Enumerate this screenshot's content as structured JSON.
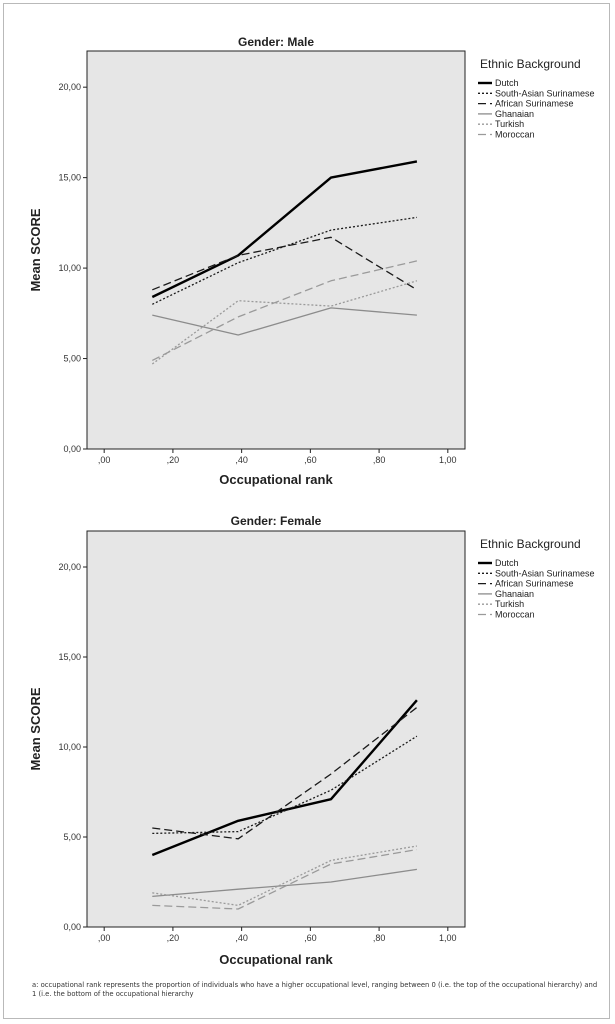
{
  "chart_data": [
    {
      "type": "line",
      "title": "Gender: Male",
      "xlabel": "Occupational rank",
      "ylabel": "Mean SCORE",
      "xlim": [
        -0.05,
        1.05
      ],
      "ylim": [
        0,
        22
      ],
      "x_ticks": [
        ",00",
        ",20",
        ",40",
        ",60",
        ",80",
        "1,00"
      ],
      "x_tick_values": [
        0,
        0.2,
        0.4,
        0.6,
        0.8,
        1.0
      ],
      "y_ticks": [
        "0,00",
        "5,00",
        "10,00",
        "15,00",
        "20,00"
      ],
      "y_tick_values": [
        0,
        5,
        10,
        15,
        20
      ],
      "grid": false,
      "legend_title": "Ethnic Background",
      "legend_position": "right",
      "x": [
        0.14,
        0.39,
        0.66,
        0.91
      ],
      "series": [
        {
          "name": "Dutch",
          "values": [
            8.4,
            10.7,
            15.0,
            15.9
          ],
          "color": "#000000",
          "dash": "solid",
          "width": 2.4
        },
        {
          "name": "South-Asian Surinamese",
          "values": [
            8.0,
            10.3,
            12.1,
            12.8
          ],
          "color": "#1a1a1a",
          "dash": "dotted",
          "width": 1.3
        },
        {
          "name": "African Surinamese",
          "values": [
            8.8,
            10.7,
            11.7,
            8.8
          ],
          "color": "#1a1a1a",
          "dash": "longdash",
          "width": 1.3
        },
        {
          "name": "Ghanaian",
          "values": [
            7.4,
            6.3,
            7.8,
            7.4
          ],
          "color": "#8c8c8c",
          "dash": "solid",
          "width": 1.3
        },
        {
          "name": "Turkish",
          "values": [
            4.7,
            8.2,
            7.9,
            9.3
          ],
          "color": "#9a9a9a",
          "dash": "dotted",
          "width": 1.3
        },
        {
          "name": "Moroccan",
          "values": [
            4.9,
            7.3,
            9.3,
            10.4
          ],
          "color": "#9a9a9a",
          "dash": "longdash",
          "width": 1.3
        }
      ]
    },
    {
      "type": "line",
      "title": "Gender: Female",
      "xlabel": "Occupational rank",
      "ylabel": "Mean SCORE",
      "xlim": [
        -0.05,
        1.05
      ],
      "ylim": [
        0,
        22
      ],
      "x_ticks": [
        ",00",
        ",20",
        ",40",
        ",60",
        ",80",
        "1,00"
      ],
      "x_tick_values": [
        0,
        0.2,
        0.4,
        0.6,
        0.8,
        1.0
      ],
      "y_ticks": [
        "0,00",
        "5,00",
        "10,00",
        "15,00",
        "20,00"
      ],
      "y_tick_values": [
        0,
        5,
        10,
        15,
        20
      ],
      "grid": false,
      "legend_title": "Ethnic Background",
      "legend_position": "right",
      "x": [
        0.14,
        0.39,
        0.66,
        0.91
      ],
      "series": [
        {
          "name": "Dutch",
          "values": [
            4.0,
            5.9,
            7.1,
            12.6
          ],
          "color": "#000000",
          "dash": "solid",
          "width": 2.4
        },
        {
          "name": "South-Asian Surinamese",
          "values": [
            5.2,
            5.3,
            7.6,
            10.6
          ],
          "color": "#1a1a1a",
          "dash": "dotted",
          "width": 1.3
        },
        {
          "name": "African Surinamese",
          "values": [
            5.5,
            4.9,
            8.5,
            12.2
          ],
          "color": "#1a1a1a",
          "dash": "longdash",
          "width": 1.3
        },
        {
          "name": "Ghanaian",
          "values": [
            1.7,
            2.1,
            2.5,
            3.2
          ],
          "color": "#8c8c8c",
          "dash": "solid",
          "width": 1.3
        },
        {
          "name": "Turkish",
          "values": [
            1.9,
            1.2,
            3.7,
            4.5
          ],
          "color": "#9a9a9a",
          "dash": "dotted",
          "width": 1.3
        },
        {
          "name": "Moroccan",
          "values": [
            1.2,
            1.0,
            3.5,
            4.3
          ],
          "color": "#9a9a9a",
          "dash": "longdash",
          "width": 1.3
        }
      ]
    }
  ],
  "footnote": "a: occupational rank represents the proportion of individuals who have a higher occupational level, ranging between 0 (i.e. the top of the occupational hierarchy) and 1 (i.e. the bottom of the occupational hierarchy"
}
